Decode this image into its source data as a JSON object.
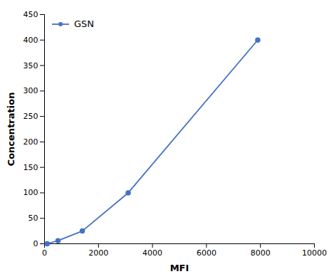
{
  "chart_data": {
    "type": "line",
    "xlabel": "MFI",
    "ylabel": "Concentration",
    "x": [
      100,
      500,
      1400,
      3100,
      7900
    ],
    "series": [
      {
        "name": "GSN",
        "color": "#4472C4",
        "marker": "circle",
        "values": [
          0,
          6,
          25,
          100,
          400
        ]
      }
    ],
    "xlim": [
      0,
      10000
    ],
    "xticks": [
      0,
      2000,
      4000,
      6000,
      8000,
      10000
    ],
    "ylim": [
      0,
      450
    ],
    "yticks": [
      0,
      50,
      100,
      150,
      200,
      250,
      300,
      350,
      400,
      450
    ],
    "grid": false,
    "legend": "upper left"
  }
}
